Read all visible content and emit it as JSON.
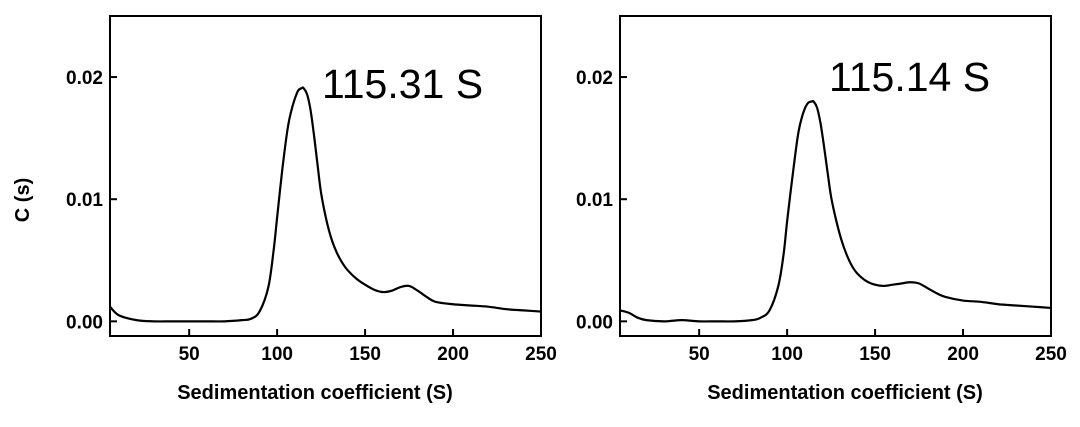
{
  "chart_data": [
    {
      "type": "line",
      "xlabel": "Sedimentation coefficient (S)",
      "ylabel": "C (s)",
      "xlim": [
        5,
        250
      ],
      "ylim": [
        -0.0012,
        0.025
      ],
      "x_ticks": [
        50,
        100,
        150,
        200,
        250
      ],
      "x_tick_labels": [
        "50",
        "100",
        "150",
        "200",
        "250"
      ],
      "y_ticks": [
        0.0,
        0.01,
        0.02
      ],
      "y_tick_labels": [
        "0.00",
        "0.01",
        "0.02"
      ],
      "annotation": "115.31 S",
      "annotation_at": [
        115,
        0.0205
      ],
      "grid": false,
      "series": [
        {
          "x": [
            5,
            10,
            20,
            30,
            40,
            50,
            60,
            70,
            80,
            85,
            90,
            95,
            98,
            100,
            103,
            106,
            108,
            110,
            112,
            114,
            115,
            117,
            119,
            121,
            123,
            125,
            128,
            131,
            134,
            137,
            140,
            145,
            150,
            155,
            160,
            165,
            170,
            175,
            180,
            185,
            190,
            200,
            210,
            220,
            230,
            240,
            250
          ],
          "y": [
            0.0012,
            0.0005,
            0.0001,
            0.0,
            0.0,
            0.0,
            0.0,
            0.0,
            0.0001,
            0.0002,
            0.0008,
            0.0028,
            0.0058,
            0.0085,
            0.0125,
            0.0158,
            0.0172,
            0.0182,
            0.0189,
            0.0191,
            0.0191,
            0.0186,
            0.0173,
            0.0152,
            0.0128,
            0.0105,
            0.0083,
            0.0067,
            0.0056,
            0.0048,
            0.0042,
            0.0035,
            0.003,
            0.0026,
            0.0024,
            0.0025,
            0.0028,
            0.0029,
            0.0025,
            0.002,
            0.0016,
            0.0014,
            0.0013,
            0.0012,
            0.001,
            0.0009,
            0.0008
          ]
        }
      ]
    },
    {
      "type": "line",
      "xlabel": "Sedimentation coefficient (S)",
      "ylabel": "",
      "xlim": [
        5,
        250
      ],
      "ylim": [
        -0.0012,
        0.025
      ],
      "x_ticks": [
        50,
        100,
        150,
        200,
        250
      ],
      "x_tick_labels": [
        "50",
        "100",
        "150",
        "200",
        "250"
      ],
      "y_ticks": [
        0.0,
        0.01,
        0.02
      ],
      "y_tick_labels": [
        "0.00",
        "0.01",
        "0.02"
      ],
      "annotation": "115.14 S",
      "annotation_at": [
        113,
        0.0205
      ],
      "grid": false,
      "series": [
        {
          "x": [
            5,
            10,
            15,
            20,
            30,
            40,
            50,
            60,
            70,
            80,
            85,
            90,
            95,
            98,
            100,
            103,
            106,
            108,
            110,
            112,
            114,
            115,
            117,
            119,
            121,
            123,
            125,
            128,
            131,
            134,
            137,
            140,
            145,
            150,
            155,
            160,
            165,
            170,
            175,
            180,
            185,
            190,
            200,
            210,
            220,
            230,
            240,
            250
          ],
          "y": [
            0.0009,
            0.0007,
            0.0003,
            0.0001,
            0.0,
            0.0001,
            0.0,
            0.0,
            0.0,
            0.0001,
            0.0003,
            0.0009,
            0.0029,
            0.0055,
            0.0082,
            0.0118,
            0.0151,
            0.0165,
            0.0174,
            0.0179,
            0.018,
            0.018,
            0.0175,
            0.0162,
            0.0143,
            0.0122,
            0.0102,
            0.0082,
            0.0066,
            0.0054,
            0.0045,
            0.0039,
            0.0033,
            0.003,
            0.0029,
            0.003,
            0.0031,
            0.0032,
            0.0031,
            0.0027,
            0.0023,
            0.002,
            0.0017,
            0.0016,
            0.0014,
            0.0013,
            0.0012,
            0.0011
          ]
        }
      ]
    }
  ]
}
